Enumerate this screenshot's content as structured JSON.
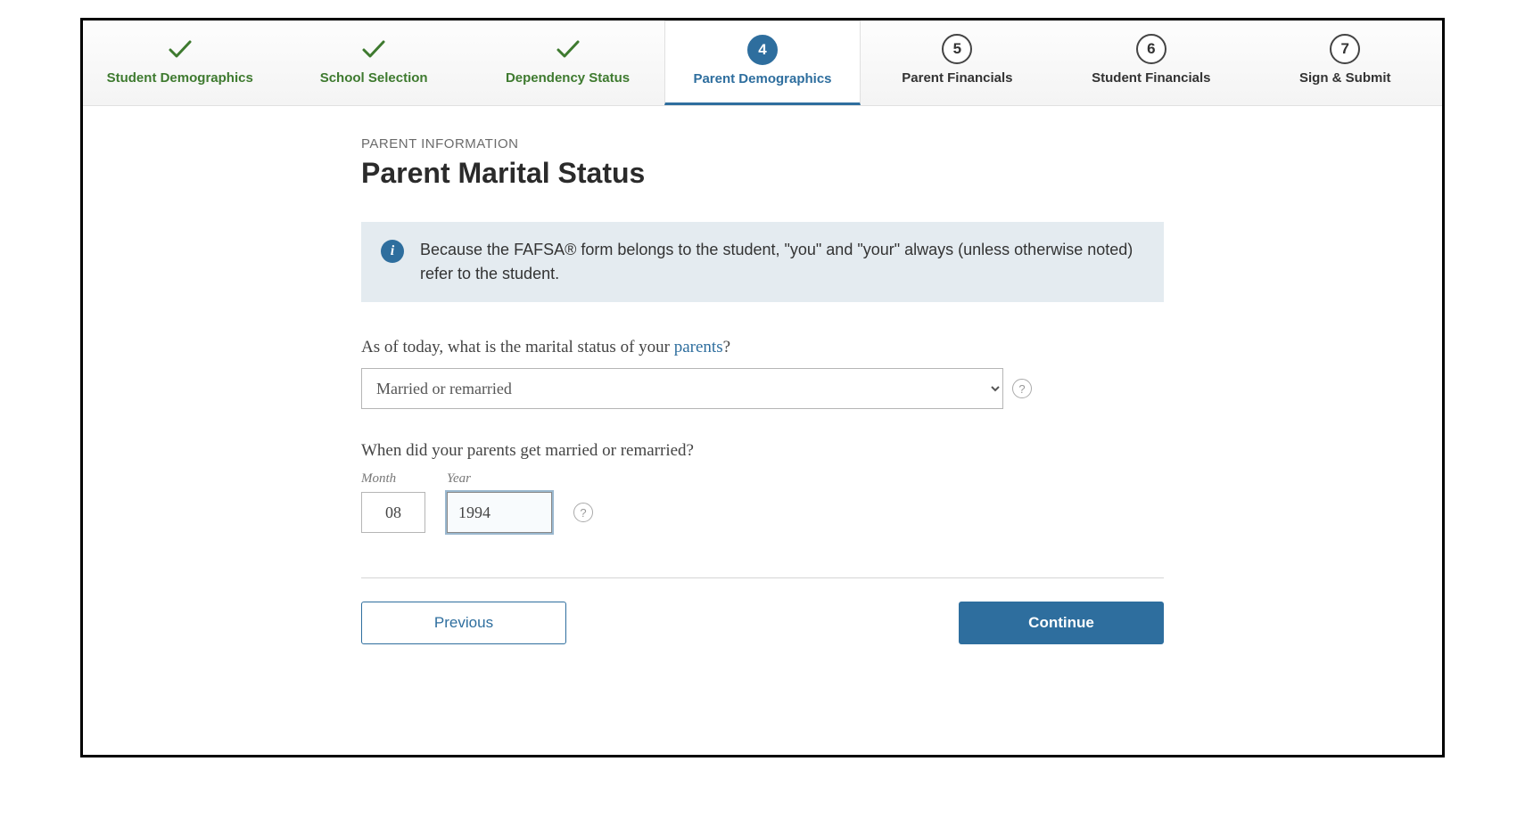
{
  "colors": {
    "primary": "#2e6e9e",
    "done": "#3e7a2f",
    "infoBg": "#e4ebf0",
    "border": "#b5b5b5",
    "text": "#333333"
  },
  "steps": [
    {
      "num": 1,
      "label": "Student Demographics",
      "state": "done"
    },
    {
      "num": 2,
      "label": "School Selection",
      "state": "done"
    },
    {
      "num": 3,
      "label": "Dependency Status",
      "state": "done"
    },
    {
      "num": 4,
      "label": "Parent Demographics",
      "state": "current"
    },
    {
      "num": 5,
      "label": "Parent Financials",
      "state": "future"
    },
    {
      "num": 6,
      "label": "Student Financials",
      "state": "future"
    },
    {
      "num": 7,
      "label": "Sign & Submit",
      "state": "future"
    }
  ],
  "page": {
    "eyebrow": "PARENT INFORMATION",
    "title": "Parent Marital Status",
    "infoText": "Because the FAFSA® form belongs to the student, \"you\" and \"your\" always (unless otherwise noted) refer to the student.",
    "q1_prefix": "As of today, what is the marital status of your ",
    "q1_link": "parents",
    "q1_suffix": "?",
    "maritalSelected": "Married or remarried",
    "q2": "When did your parents get married or remarried?",
    "monthLabel": "Month",
    "yearLabel": "Year",
    "monthValue": "08",
    "yearValue": "1994",
    "prevBtn": "Previous",
    "nextBtn": "Continue",
    "helpGlyph": "?",
    "infoGlyph": "i"
  }
}
